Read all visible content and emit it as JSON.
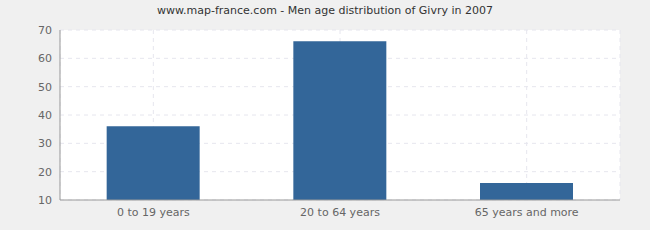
{
  "chart_data": {
    "type": "bar",
    "title": "www.map-france.com - Men age distribution of Givry in 2007",
    "categories": [
      "0 to 19 years",
      "20 to 64 years",
      "65 years and more"
    ],
    "values": [
      36,
      66,
      16
    ],
    "color": "#336699",
    "ylim": [
      10,
      70
    ],
    "yticks": [
      10,
      20,
      30,
      40,
      50,
      60,
      70
    ],
    "grid": true
  }
}
